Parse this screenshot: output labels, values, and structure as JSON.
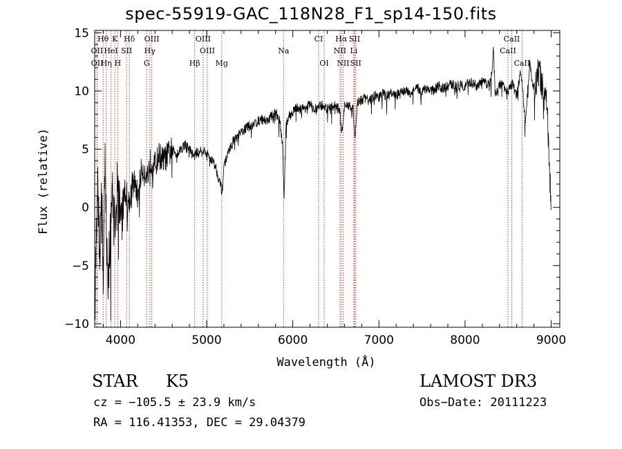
{
  "chart_data": {
    "type": "line",
    "title": "spec-55919-GAC_118N28_F1_sp14-150.fits",
    "xlabel": "Wavelength (Å)",
    "ylabel": "Flux (relative)",
    "xlim": [
      3700,
      9100
    ],
    "ylim": [
      -10.3,
      15.2
    ],
    "xticks": [
      4000,
      5000,
      6000,
      7000,
      8000,
      9000
    ],
    "yticks": [
      -10,
      -5,
      0,
      5,
      10,
      15
    ],
    "series": [
      {
        "name": "flux",
        "x": [
          3700,
          3730,
          3760,
          3780,
          3800,
          3820,
          3840,
          3860,
          3880,
          3900,
          3930,
          3960,
          4000,
          4050,
          4100,
          4150,
          4200,
          4250,
          4300,
          4350,
          4400,
          4450,
          4500,
          4550,
          4600,
          4650,
          4700,
          4750,
          4800,
          4850,
          4900,
          4950,
          5000,
          5050,
          5100,
          5150,
          5180,
          5200,
          5250,
          5300,
          5350,
          5400,
          5450,
          5500,
          5550,
          5600,
          5650,
          5700,
          5750,
          5800,
          5850,
          5880,
          5900,
          5920,
          5950,
          6000,
          6050,
          6100,
          6150,
          6200,
          6250,
          6300,
          6350,
          6400,
          6450,
          6500,
          6550,
          6565,
          6600,
          6650,
          6700,
          6720,
          6750,
          6800,
          6850,
          6900,
          6950,
          7000,
          7050,
          7100,
          7150,
          7200,
          7250,
          7300,
          7350,
          7400,
          7450,
          7500,
          7550,
          7600,
          7650,
          7700,
          7750,
          7800,
          7850,
          7900,
          7950,
          8000,
          8050,
          8100,
          8150,
          8200,
          8250,
          8300,
          8330,
          8350,
          8400,
          8450,
          8500,
          8550,
          8600,
          8650,
          8700,
          8750,
          8800,
          8850,
          8900,
          8950,
          9000
        ],
        "y": [
          -9.8,
          2.5,
          -4,
          1.5,
          -6,
          3.5,
          -3,
          -6.2,
          -2,
          1.5,
          -1.5,
          2,
          -0.5,
          1.5,
          0.5,
          2.5,
          1,
          3.5,
          2.5,
          4,
          3.6,
          4.5,
          4,
          4.5,
          5,
          4.6,
          5,
          5.4,
          5,
          4.4,
          4.8,
          5,
          4.6,
          4.2,
          3.6,
          2.2,
          1.3,
          3.6,
          4.6,
          5.6,
          6,
          6.4,
          6.8,
          7,
          7.2,
          7.4,
          7.6,
          7.4,
          7.8,
          8.2,
          7.5,
          5.5,
          0.7,
          6.8,
          7.8,
          8.2,
          8.6,
          8.4,
          8.6,
          8.8,
          8.4,
          8.6,
          8.8,
          8.4,
          8.6,
          8.8,
          8.2,
          6.2,
          8.6,
          8.8,
          8.4,
          6,
          9,
          9.2,
          9.4,
          9.2,
          9.6,
          9.4,
          9.8,
          9.6,
          9.8,
          9.6,
          9.8,
          10,
          9.8,
          10,
          10.2,
          10,
          10.2,
          10,
          10.2,
          10.4,
          10.2,
          10.4,
          10.6,
          10.4,
          10.6,
          10.4,
          10.8,
          10.6,
          10.4,
          10.8,
          10.6,
          10.8,
          13.6,
          9.6,
          10.6,
          10.4,
          10,
          10.6,
          9.6,
          11.8,
          7.2,
          12.4,
          9.8,
          11.8,
          10.5,
          8.8,
          -0.2
        ]
      }
    ],
    "lines": [
      {
        "name": "Hθ",
        "x": 3798,
        "row": 0
      },
      {
        "name": "K",
        "x": 3934,
        "row": 0
      },
      {
        "name": "Hδ",
        "x": 4102,
        "row": 0
      },
      {
        "name": "OIII",
        "x": 4363,
        "row": 0
      },
      {
        "name": "OIII",
        "x": 4959,
        "row": 0
      },
      {
        "name": "CI",
        "x": 6300,
        "row": 0
      },
      {
        "name": "Hα",
        "x": 6563,
        "row": 0
      },
      {
        "name": "SII",
        "x": 6717,
        "row": 0
      },
      {
        "name": "CaII",
        "x": 8542,
        "row": 0
      },
      {
        "name": "OII",
        "x": 3727,
        "row": 1
      },
      {
        "name": "HeI",
        "x": 3889,
        "row": 1
      },
      {
        "name": "SII",
        "x": 4070,
        "row": 1
      },
      {
        "name": "Hγ",
        "x": 4340,
        "row": 1
      },
      {
        "name": "OIII",
        "x": 5007,
        "row": 1
      },
      {
        "name": "Na",
        "x": 5893,
        "row": 1
      },
      {
        "name": "NII",
        "x": 6548,
        "row": 1
      },
      {
        "name": "Li",
        "x": 6708,
        "row": 1
      },
      {
        "name": "CaII",
        "x": 8498,
        "row": 1
      },
      {
        "name": "OII",
        "x": 3729,
        "row": 2
      },
      {
        "name": "Hη",
        "x": 3835,
        "row": 2
      },
      {
        "name": "H",
        "x": 3968,
        "row": 2
      },
      {
        "name": "G",
        "x": 4304,
        "row": 2
      },
      {
        "name": "Hβ",
        "x": 4861,
        "row": 2
      },
      {
        "name": "Mg",
        "x": 5175,
        "row": 2
      },
      {
        "name": "OI",
        "x": 6364,
        "row": 2
      },
      {
        "name": "NII",
        "x": 6584,
        "row": 2
      },
      {
        "name": "SII",
        "x": 6731,
        "row": 2
      },
      {
        "name": "CaII",
        "x": 8662,
        "row": 2
      }
    ]
  },
  "info": {
    "class": "STAR",
    "subclass": "K5",
    "survey": "LAMOST DR3",
    "cz": "cz = −105.5 ± 23.9 km/s",
    "obs_date": "Obs−Date: 20111223",
    "radec": "RA = 116.41353, DEC =  29.04379"
  }
}
